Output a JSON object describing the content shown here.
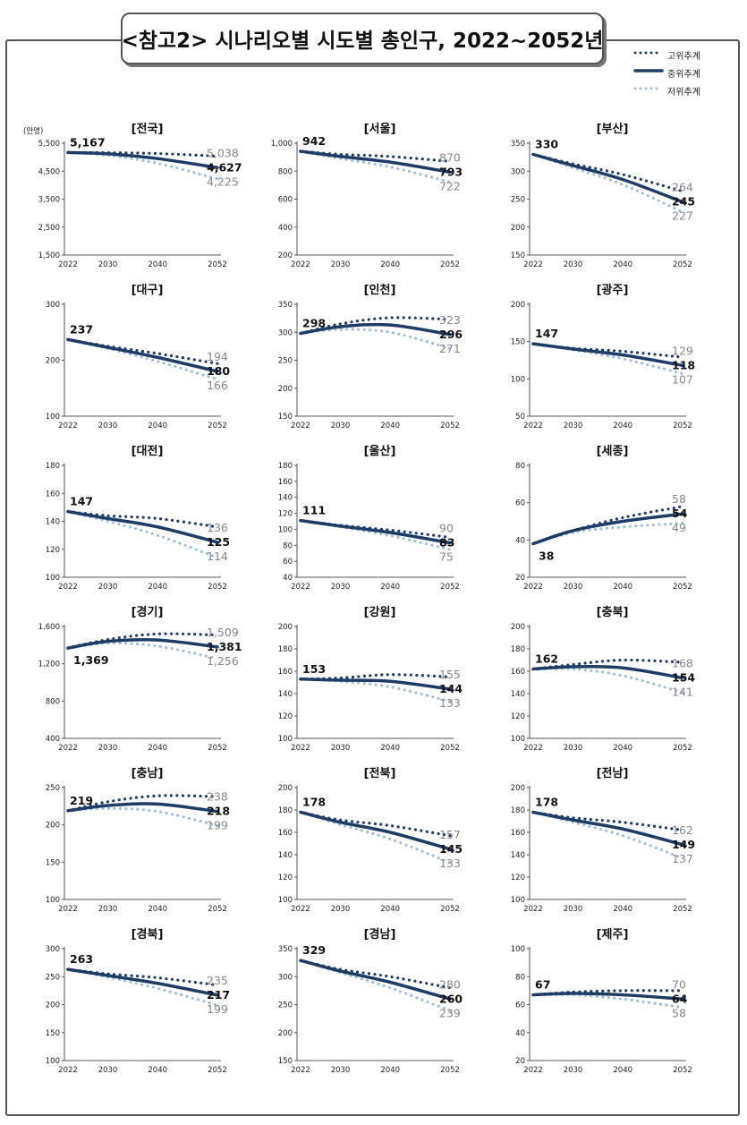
{
  "title": "<참고2> 시나리오별 시도별 총인구, 2022~2052년",
  "legend": {
    "high": "고위추계",
    "mid": "중위추계",
    "low": "저위추계"
  },
  "colors": {
    "high": "#1e3a66",
    "mid": "#1f3c64",
    "low": "#9fbfe0",
    "axis": "#555555"
  },
  "unit_label": "(만명)",
  "chart_data": [
    {
      "type": "line",
      "title": "전국",
      "categories": [
        "2022",
        "2030",
        "2040",
        "2052"
      ],
      "ylim": [
        1500,
        5500
      ],
      "yticks": [
        "1,500",
        "2,500",
        "3,500",
        "4,500",
        "5,500"
      ],
      "start_label": "5,167",
      "start_pos": "above",
      "end_labels": {
        "high": "5,038",
        "mid": "4,627",
        "low": "4,225"
      },
      "series": [
        {
          "name": "고위추계",
          "key": "high",
          "values": [
            5167,
            5160,
            5130,
            5038
          ]
        },
        {
          "name": "중위추계",
          "key": "mid",
          "values": [
            5167,
            5120,
            4950,
            4627
          ]
        },
        {
          "name": "저위추계",
          "key": "low",
          "values": [
            5167,
            5070,
            4780,
            4225
          ]
        }
      ]
    },
    {
      "type": "line",
      "title": "서울",
      "categories": [
        "2022",
        "2030",
        "2040",
        "2052"
      ],
      "ylim": [
        200,
        1000
      ],
      "yticks": [
        "200",
        "400",
        "600",
        "800",
        "1,000"
      ],
      "start_label": "942",
      "start_pos": "above",
      "end_labels": {
        "high": "870",
        "mid": "793",
        "low": "722"
      },
      "series": [
        {
          "name": "고위추계",
          "key": "high",
          "values": [
            942,
            920,
            905,
            870
          ]
        },
        {
          "name": "중위추계",
          "key": "mid",
          "values": [
            942,
            905,
            865,
            793
          ]
        },
        {
          "name": "저위추계",
          "key": "low",
          "values": [
            942,
            890,
            830,
            722
          ]
        }
      ]
    },
    {
      "type": "line",
      "title": "부산",
      "categories": [
        "2022",
        "2030",
        "2040",
        "2052"
      ],
      "ylim": [
        150,
        350
      ],
      "yticks": [
        "150",
        "200",
        "250",
        "300",
        "350"
      ],
      "start_label": "330",
      "start_pos": "above",
      "end_labels": {
        "high": "264",
        "mid": "245",
        "low": "227"
      },
      "series": [
        {
          "name": "고위추계",
          "key": "high",
          "values": [
            330,
            313,
            294,
            264
          ]
        },
        {
          "name": "중위추계",
          "key": "mid",
          "values": [
            330,
            310,
            285,
            245
          ]
        },
        {
          "name": "저위추계",
          "key": "low",
          "values": [
            330,
            306,
            276,
            227
          ]
        }
      ]
    },
    {
      "type": "line",
      "title": "대구",
      "categories": [
        "2022",
        "2030",
        "2040",
        "2052"
      ],
      "ylim": [
        100,
        300
      ],
      "yticks": [
        "100",
        "200",
        "300"
      ],
      "start_label": "237",
      "start_pos": "above",
      "end_labels": {
        "high": "194",
        "mid": "180",
        "low": "166"
      },
      "series": [
        {
          "name": "고위추계",
          "key": "high",
          "values": [
            237,
            225,
            212,
            194
          ]
        },
        {
          "name": "중위추계",
          "key": "mid",
          "values": [
            237,
            223,
            205,
            180
          ]
        },
        {
          "name": "저위추계",
          "key": "low",
          "values": [
            237,
            221,
            198,
            166
          ]
        }
      ]
    },
    {
      "type": "line",
      "title": "인천",
      "categories": [
        "2022",
        "2030",
        "2040",
        "2052"
      ],
      "ylim": [
        150,
        350
      ],
      "yticks": [
        "150",
        "200",
        "250",
        "300",
        "350"
      ],
      "start_label": "298",
      "start_pos": "above",
      "end_labels": {
        "high": "323",
        "mid": "296",
        "low": "271"
      },
      "series": [
        {
          "name": "고위추계",
          "key": "high",
          "values": [
            298,
            315,
            326,
            323
          ]
        },
        {
          "name": "중위추계",
          "key": "mid",
          "values": [
            298,
            310,
            313,
            296
          ]
        },
        {
          "name": "저위추계",
          "key": "low",
          "values": [
            298,
            305,
            300,
            271
          ]
        }
      ]
    },
    {
      "type": "line",
      "title": "광주",
      "categories": [
        "2022",
        "2030",
        "2040",
        "2052"
      ],
      "ylim": [
        50,
        200
      ],
      "yticks": [
        "50",
        "100",
        "150",
        "200"
      ],
      "start_label": "147",
      "start_pos": "above",
      "end_labels": {
        "high": "129",
        "mid": "118",
        "low": "107"
      },
      "series": [
        {
          "name": "고위추계",
          "key": "high",
          "values": [
            147,
            141,
            137,
            129
          ]
        },
        {
          "name": "중위추계",
          "key": "mid",
          "values": [
            147,
            140,
            132,
            118
          ]
        },
        {
          "name": "저위추계",
          "key": "low",
          "values": [
            147,
            139,
            127,
            107
          ]
        }
      ]
    },
    {
      "type": "line",
      "title": "대전",
      "categories": [
        "2022",
        "2030",
        "2040",
        "2052"
      ],
      "ylim": [
        100,
        180
      ],
      "yticks": [
        "100",
        "120",
        "140",
        "160",
        "180"
      ],
      "start_label": "147",
      "start_pos": "above",
      "end_labels": {
        "high": "136",
        "mid": "125",
        "low": "114"
      },
      "series": [
        {
          "name": "고위추계",
          "key": "high",
          "values": [
            147,
            144,
            142,
            136
          ]
        },
        {
          "name": "중위추계",
          "key": "mid",
          "values": [
            147,
            142,
            136,
            125
          ]
        },
        {
          "name": "저위추계",
          "key": "low",
          "values": [
            147,
            140,
            130,
            114
          ]
        }
      ]
    },
    {
      "type": "line",
      "title": "울산",
      "categories": [
        "2022",
        "2030",
        "2040",
        "2052"
      ],
      "ylim": [
        40,
        180
      ],
      "yticks": [
        "40",
        "60",
        "80",
        "100",
        "120",
        "140",
        "160",
        "180"
      ],
      "start_label": "111",
      "start_pos": "above",
      "end_labels": {
        "high": "90",
        "mid": "83",
        "low": "75"
      },
      "series": [
        {
          "name": "고위추계",
          "key": "high",
          "values": [
            111,
            105,
            99,
            90
          ]
        },
        {
          "name": "중위추계",
          "key": "mid",
          "values": [
            111,
            104,
            96,
            83
          ]
        },
        {
          "name": "저위추계",
          "key": "low",
          "values": [
            111,
            103,
            92,
            75
          ]
        }
      ]
    },
    {
      "type": "line",
      "title": "세종",
      "categories": [
        "2022",
        "2030",
        "2040",
        "2052"
      ],
      "ylim": [
        20,
        80
      ],
      "yticks": [
        "20",
        "40",
        "60",
        "80"
      ],
      "start_label": "38",
      "start_pos": "below",
      "end_labels": {
        "high": "58",
        "mid": "54",
        "low": "49"
      },
      "series": [
        {
          "name": "고위추계",
          "key": "high",
          "values": [
            38,
            45,
            52,
            58
          ]
        },
        {
          "name": "중위추계",
          "key": "mid",
          "values": [
            38,
            45,
            50,
            54
          ]
        },
        {
          "name": "저위추계",
          "key": "low",
          "values": [
            38,
            44,
            47,
            49
          ]
        }
      ]
    },
    {
      "type": "line",
      "title": "경기",
      "categories": [
        "2022",
        "2030",
        "2040",
        "2052"
      ],
      "ylim": [
        400,
        1600
      ],
      "yticks": [
        "400",
        "800",
        "1,200",
        "1,600"
      ],
      "start_label": "1,369",
      "start_pos": "below",
      "end_labels": {
        "high": "1,509",
        "mid": "1,381",
        "low": "1,256"
      },
      "series": [
        {
          "name": "고위추계",
          "key": "high",
          "values": [
            1369,
            1460,
            1520,
            1509
          ]
        },
        {
          "name": "중위추계",
          "key": "mid",
          "values": [
            1369,
            1440,
            1455,
            1381
          ]
        },
        {
          "name": "저위추계",
          "key": "low",
          "values": [
            1369,
            1420,
            1390,
            1256
          ]
        }
      ]
    },
    {
      "type": "line",
      "title": "강원",
      "categories": [
        "2022",
        "2030",
        "2040",
        "2052"
      ],
      "ylim": [
        100,
        200
      ],
      "yticks": [
        "100",
        "120",
        "140",
        "160",
        "180",
        "200"
      ],
      "start_label": "153",
      "start_pos": "above",
      "end_labels": {
        "high": "155",
        "mid": "144",
        "low": "133"
      },
      "series": [
        {
          "name": "고위추계",
          "key": "high",
          "values": [
            153,
            154,
            157,
            155
          ]
        },
        {
          "name": "중위추계",
          "key": "mid",
          "values": [
            153,
            152,
            151,
            144
          ]
        },
        {
          "name": "저위추계",
          "key": "low",
          "values": [
            153,
            151,
            146,
            133
          ]
        }
      ]
    },
    {
      "type": "line",
      "title": "충북",
      "categories": [
        "2022",
        "2030",
        "2040",
        "2052"
      ],
      "ylim": [
        100,
        200
      ],
      "yticks": [
        "100",
        "120",
        "140",
        "160",
        "180",
        "200"
      ],
      "start_label": "162",
      "start_pos": "above",
      "end_labels": {
        "high": "168",
        "mid": "154",
        "low": "141"
      },
      "series": [
        {
          "name": "고위추계",
          "key": "high",
          "values": [
            162,
            166,
            170,
            168
          ]
        },
        {
          "name": "중위추계",
          "key": "mid",
          "values": [
            162,
            164,
            163,
            154
          ]
        },
        {
          "name": "저위추계",
          "key": "low",
          "values": [
            162,
            162,
            156,
            141
          ]
        }
      ]
    },
    {
      "type": "line",
      "title": "충남",
      "categories": [
        "2022",
        "2030",
        "2040",
        "2052"
      ],
      "ylim": [
        100,
        250
      ],
      "yticks": [
        "100",
        "150",
        "200",
        "250"
      ],
      "start_label": "219",
      "start_pos": "above",
      "end_labels": {
        "high": "238",
        "mid": "218",
        "low": "199"
      },
      "series": [
        {
          "name": "고위추계",
          "key": "high",
          "values": [
            219,
            231,
            239,
            238
          ]
        },
        {
          "name": "중위추계",
          "key": "mid",
          "values": [
            219,
            226,
            228,
            218
          ]
        },
        {
          "name": "저위추계",
          "key": "low",
          "values": [
            219,
            222,
            218,
            199
          ]
        }
      ]
    },
    {
      "type": "line",
      "title": "전북",
      "categories": [
        "2022",
        "2030",
        "2040",
        "2052"
      ],
      "ylim": [
        100,
        200
      ],
      "yticks": [
        "100",
        "120",
        "140",
        "160",
        "180",
        "200"
      ],
      "start_label": "178",
      "start_pos": "above",
      "end_labels": {
        "high": "157",
        "mid": "145",
        "low": "133"
      },
      "series": [
        {
          "name": "고위추계",
          "key": "high",
          "values": [
            178,
            171,
            166,
            157
          ]
        },
        {
          "name": "중위추계",
          "key": "mid",
          "values": [
            178,
            169,
            160,
            145
          ]
        },
        {
          "name": "저위추계",
          "key": "low",
          "values": [
            178,
            167,
            154,
            133
          ]
        }
      ]
    },
    {
      "type": "line",
      "title": "전남",
      "categories": [
        "2022",
        "2030",
        "2040",
        "2052"
      ],
      "ylim": [
        100,
        200
      ],
      "yticks": [
        "100",
        "120",
        "140",
        "160",
        "180",
        "200"
      ],
      "start_label": "178",
      "start_pos": "above",
      "end_labels": {
        "high": "162",
        "mid": "149",
        "low": "137"
      },
      "series": [
        {
          "name": "고위추계",
          "key": "high",
          "values": [
            178,
            173,
            169,
            162
          ]
        },
        {
          "name": "중위추계",
          "key": "mid",
          "values": [
            178,
            171,
            163,
            149
          ]
        },
        {
          "name": "저위추계",
          "key": "low",
          "values": [
            178,
            169,
            157,
            137
          ]
        }
      ]
    },
    {
      "type": "line",
      "title": "경북",
      "categories": [
        "2022",
        "2030",
        "2040",
        "2052"
      ],
      "ylim": [
        100,
        300
      ],
      "yticks": [
        "100",
        "150",
        "200",
        "250",
        "300"
      ],
      "start_label": "263",
      "start_pos": "above",
      "end_labels": {
        "high": "235",
        "mid": "217",
        "low": "199"
      },
      "series": [
        {
          "name": "고위추계",
          "key": "high",
          "values": [
            263,
            255,
            248,
            235
          ]
        },
        {
          "name": "중위추계",
          "key": "mid",
          "values": [
            263,
            252,
            238,
            217
          ]
        },
        {
          "name": "저위추계",
          "key": "low",
          "values": [
            263,
            249,
            229,
            199
          ]
        }
      ]
    },
    {
      "type": "line",
      "title": "경남",
      "categories": [
        "2022",
        "2030",
        "2040",
        "2052"
      ],
      "ylim": [
        150,
        350
      ],
      "yticks": [
        "150",
        "200",
        "250",
        "300",
        "350"
      ],
      "start_label": "329",
      "start_pos": "above",
      "end_labels": {
        "high": "280",
        "mid": "260",
        "low": "239"
      },
      "series": [
        {
          "name": "고위추계",
          "key": "high",
          "values": [
            329,
            313,
            300,
            280
          ]
        },
        {
          "name": "중위추계",
          "key": "mid",
          "values": [
            329,
            310,
            290,
            260
          ]
        },
        {
          "name": "저위추계",
          "key": "low",
          "values": [
            329,
            307,
            280,
            239
          ]
        }
      ]
    },
    {
      "type": "line",
      "title": "제주",
      "categories": [
        "2022",
        "2030",
        "2040",
        "2052"
      ],
      "ylim": [
        20,
        100
      ],
      "yticks": [
        "20",
        "40",
        "60",
        "80",
        "100"
      ],
      "start_label": "67",
      "start_pos": "above",
      "end_labels": {
        "high": "70",
        "mid": "64",
        "low": "58"
      },
      "series": [
        {
          "name": "고위추계",
          "key": "high",
          "values": [
            67,
            69,
            70,
            70
          ]
        },
        {
          "name": "중위추계",
          "key": "mid",
          "values": [
            67,
            68,
            67,
            64
          ]
        },
        {
          "name": "저위추계",
          "key": "low",
          "values": [
            67,
            67,
            64,
            58
          ]
        }
      ]
    }
  ]
}
